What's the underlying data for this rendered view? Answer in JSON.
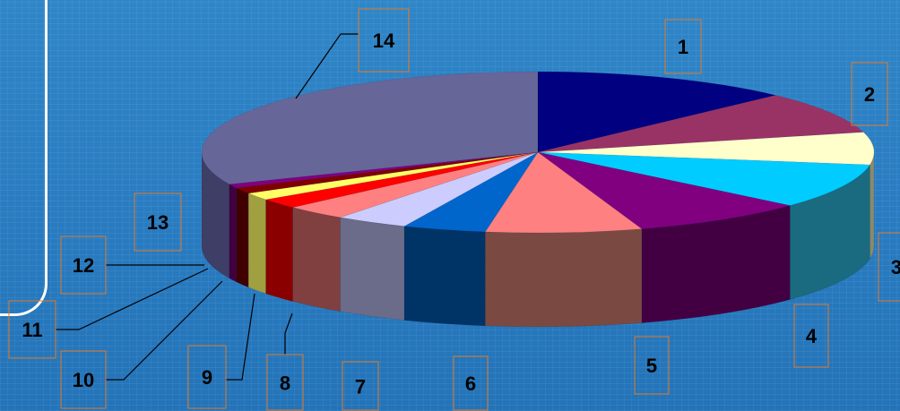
{
  "chart_data": {
    "type": "pie",
    "title": "",
    "style": "3d-exploded-none",
    "slices": [
      {
        "label": "1",
        "value": 12.5,
        "color": "#000080",
        "side": "#00005a"
      },
      {
        "label": "2",
        "value": 8.5,
        "color": "#993366",
        "side": "#6e2449"
      },
      {
        "label": "3",
        "value": 6.5,
        "color": "#ffffcc",
        "side": "#8a8a6e"
      },
      {
        "label": "4",
        "value": 9.0,
        "color": "#00ccff",
        "side": "#1a6b80"
      },
      {
        "label": "5",
        "value": 8.5,
        "color": "#800080",
        "side": "#420042"
      },
      {
        "label": "6",
        "value": 7.5,
        "color": "#ff8080",
        "side": "#7a4a42"
      },
      {
        "label": "7",
        "value": 4.0,
        "color": "#0066cc",
        "side": "#003366"
      },
      {
        "label": "8",
        "value": 3.5,
        "color": "#ccccff",
        "side": "#6b6b8a"
      },
      {
        "label": "9",
        "value": 3.0,
        "color": "#ff8080",
        "side": "#804040"
      },
      {
        "label": "10",
        "value": 2.0,
        "color": "#ff0000",
        "side": "#8a0000"
      },
      {
        "label": "11",
        "value": 1.5,
        "color": "#ffff66",
        "side": "#a0a040"
      },
      {
        "label": "12",
        "value": 1.2,
        "color": "#800000",
        "side": "#400000"
      },
      {
        "label": "13",
        "value": 0.8,
        "color": "#800080",
        "side": "#400040"
      },
      {
        "label": "14",
        "value": 31.5,
        "color": "#666699",
        "side": "#3e3e66"
      }
    ]
  }
}
